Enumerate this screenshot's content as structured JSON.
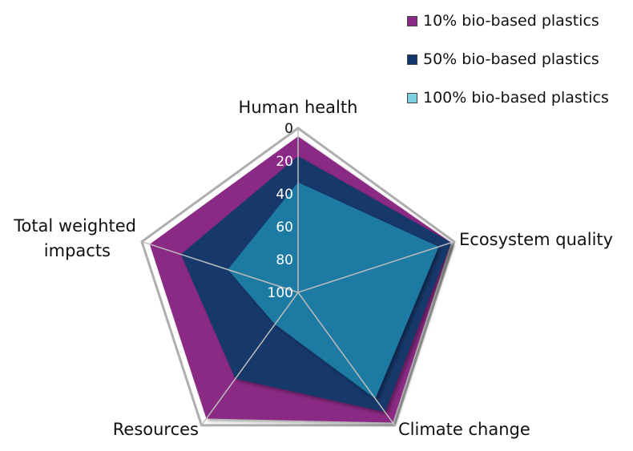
{
  "chart_data": {
    "type": "radar",
    "title": "",
    "axes": [
      "Human health",
      "Ecosystem quality",
      "Climate change",
      "Resources",
      "Total weighted impacts"
    ],
    "scale": {
      "min": 0,
      "max": 100,
      "ticks": [
        0,
        20,
        40,
        60,
        80,
        100
      ],
      "reversed": true
    },
    "series": [
      {
        "name": "10% bio-based plastics",
        "color": "#8b2a84",
        "values": [
          5,
          2,
          2,
          5,
          5
        ]
      },
      {
        "name": "50% bio-based plastics",
        "color": "#14376b",
        "values": [
          17,
          2,
          10,
          35,
          25
        ]
      },
      {
        "name": "100% bio-based plastics",
        "color": "#1f7aa3",
        "values": [
          33,
          10,
          20,
          76,
          55
        ]
      }
    ],
    "legend_position": "top-right",
    "colors": {
      "outline": "#aeaeae",
      "spoke": "#bdbdbd"
    }
  }
}
